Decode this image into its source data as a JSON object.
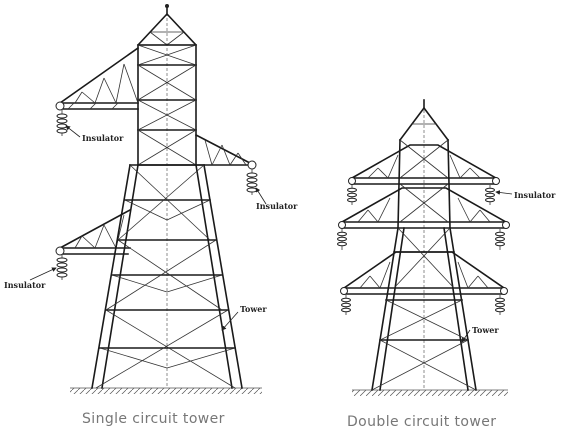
{
  "left_tower": {
    "caption": "Single circuit tower",
    "insulator_label_upper": "Insulator",
    "insulator_label_right": "Insulator",
    "insulator_label_lower": "Insulator",
    "tower_label": "Tower"
  },
  "right_tower": {
    "caption": "Double circuit tower",
    "insulator_label": "Insulator",
    "tower_label": "Tower"
  }
}
